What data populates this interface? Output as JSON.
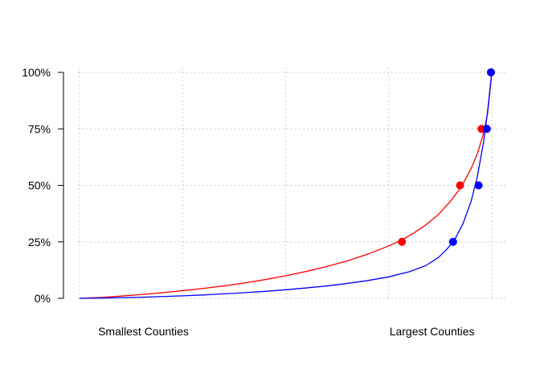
{
  "chart_data": {
    "type": "line",
    "title": "",
    "xlabel": "",
    "ylabel": "",
    "xlim": [
      0,
      1
    ],
    "ylim": [
      0,
      1
    ],
    "grid": true,
    "y_ticks": [
      {
        "value": 0,
        "label": "0%"
      },
      {
        "value": 0.25,
        "label": "25%"
      },
      {
        "value": 0.5,
        "label": "50%"
      },
      {
        "value": 0.75,
        "label": "75%"
      },
      {
        "value": 1,
        "label": "100%"
      }
    ],
    "x_grid_values": [
      0,
      0.25,
      0.5,
      0.75,
      1
    ],
    "x_annotations": [
      {
        "text": "Smallest Counties",
        "x": 0.155
      },
      {
        "text": "Largest Counties",
        "x": 0.855
      }
    ],
    "series": [
      {
        "color": "#ff0000",
        "x": [
          0,
          0.05,
          0.1,
          0.15,
          0.2,
          0.25,
          0.3,
          0.35,
          0.4,
          0.45,
          0.5,
          0.55,
          0.6,
          0.65,
          0.7,
          0.75,
          0.78,
          0.81,
          0.84,
          0.87,
          0.9,
          0.925,
          0.95,
          0.965,
          0.98,
          0.99,
          1
        ],
        "y": [
          0,
          0.004,
          0.01,
          0.017,
          0.025,
          0.034,
          0.044,
          0.055,
          0.068,
          0.083,
          0.1,
          0.119,
          0.141,
          0.166,
          0.196,
          0.232,
          0.257,
          0.288,
          0.325,
          0.37,
          0.43,
          0.49,
          0.575,
          0.64,
          0.73,
          0.82,
          1
        ],
        "markers": {
          "x": [
            0.782,
            0.923,
            0.975,
            0.998
          ],
          "y": [
            0.25,
            0.5,
            0.75,
            1
          ]
        }
      },
      {
        "color": "#0000ff",
        "x": [
          0,
          0.05,
          0.1,
          0.15,
          0.2,
          0.25,
          0.3,
          0.35,
          0.4,
          0.45,
          0.5,
          0.55,
          0.6,
          0.65,
          0.7,
          0.75,
          0.8,
          0.84,
          0.87,
          0.89,
          0.91,
          0.93,
          0.95,
          0.965,
          0.98,
          0.99,
          1
        ],
        "y": [
          0,
          0.001,
          0.003,
          0.005,
          0.008,
          0.011,
          0.015,
          0.02,
          0.025,
          0.031,
          0.038,
          0.046,
          0.055,
          0.066,
          0.079,
          0.095,
          0.118,
          0.145,
          0.18,
          0.215,
          0.26,
          0.33,
          0.43,
          0.54,
          0.69,
          0.83,
          1
        ],
        "markers": {
          "x": [
            0.906,
            0.968,
            0.988,
            0.998
          ],
          "y": [
            0.25,
            0.5,
            0.75,
            1
          ]
        }
      }
    ]
  }
}
